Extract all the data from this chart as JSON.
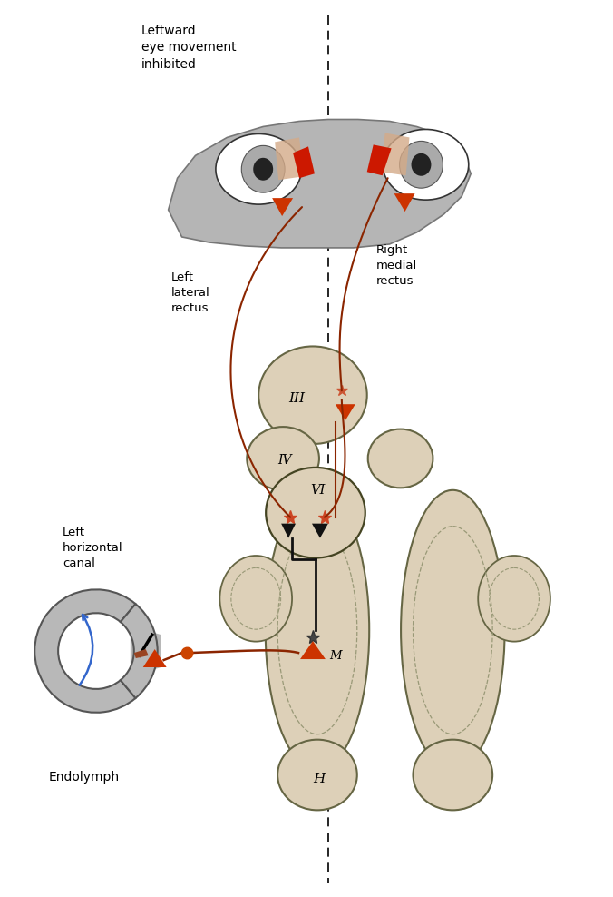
{
  "bg_color": "#ffffff",
  "dashed_line_x": 0.535,
  "label_leftward": "Leftward\neye movement\ninhibited",
  "label_left_lateral": "Left\nlateral\nrectus",
  "label_right_medial": "Right\nmedial\nrectus",
  "label_III": "III",
  "label_IV": "IV",
  "label_VI": "VI",
  "label_M": "M",
  "label_H": "H",
  "label_left_canal": "Left\nhorizontal\ncanal",
  "label_endolymph": "Endolymph",
  "nerve_color": "#8B2500",
  "gray_light": "#c0c0c0",
  "tan_fill": "#ddd0b8",
  "tan_edge": "#888866",
  "node_color": "#cc3300",
  "head_fill": "#b8b8b8",
  "head_edge": "#888888"
}
